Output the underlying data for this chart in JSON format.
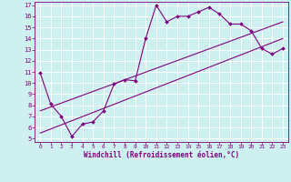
{
  "xlabel": "Windchill (Refroidissement éolien,°C)",
  "bg_color": "#cef0f0",
  "grid_color": "#ffffff",
  "line_color": "#800080",
  "spine_color": "#800080",
  "tick_color": "#800080",
  "xlim": [
    -0.5,
    23.5
  ],
  "ylim": [
    4.7,
    17.3
  ],
  "xticks": [
    0,
    1,
    2,
    3,
    4,
    5,
    6,
    7,
    8,
    9,
    10,
    11,
    12,
    13,
    14,
    15,
    16,
    17,
    18,
    19,
    20,
    21,
    22,
    23
  ],
  "yticks": [
    5,
    6,
    7,
    8,
    9,
    10,
    11,
    12,
    13,
    14,
    15,
    16,
    17
  ],
  "line1_x": [
    0,
    1,
    2,
    3,
    4,
    5,
    6,
    7,
    8,
    9,
    10,
    11,
    12,
    13,
    14,
    15,
    16,
    17,
    18,
    19,
    20,
    21,
    22,
    23
  ],
  "line1_y": [
    10.9,
    8.1,
    7.0,
    5.2,
    6.3,
    6.5,
    7.5,
    9.9,
    10.3,
    10.2,
    14.0,
    17.0,
    15.5,
    16.0,
    16.0,
    16.4,
    16.8,
    16.2,
    15.3,
    15.3,
    14.7,
    13.1,
    12.6,
    13.1
  ],
  "line2_x": [
    0,
    23
  ],
  "line2_y": [
    5.5,
    14.0
  ],
  "line3_x": [
    0,
    23
  ],
  "line3_y": [
    7.5,
    15.5
  ]
}
